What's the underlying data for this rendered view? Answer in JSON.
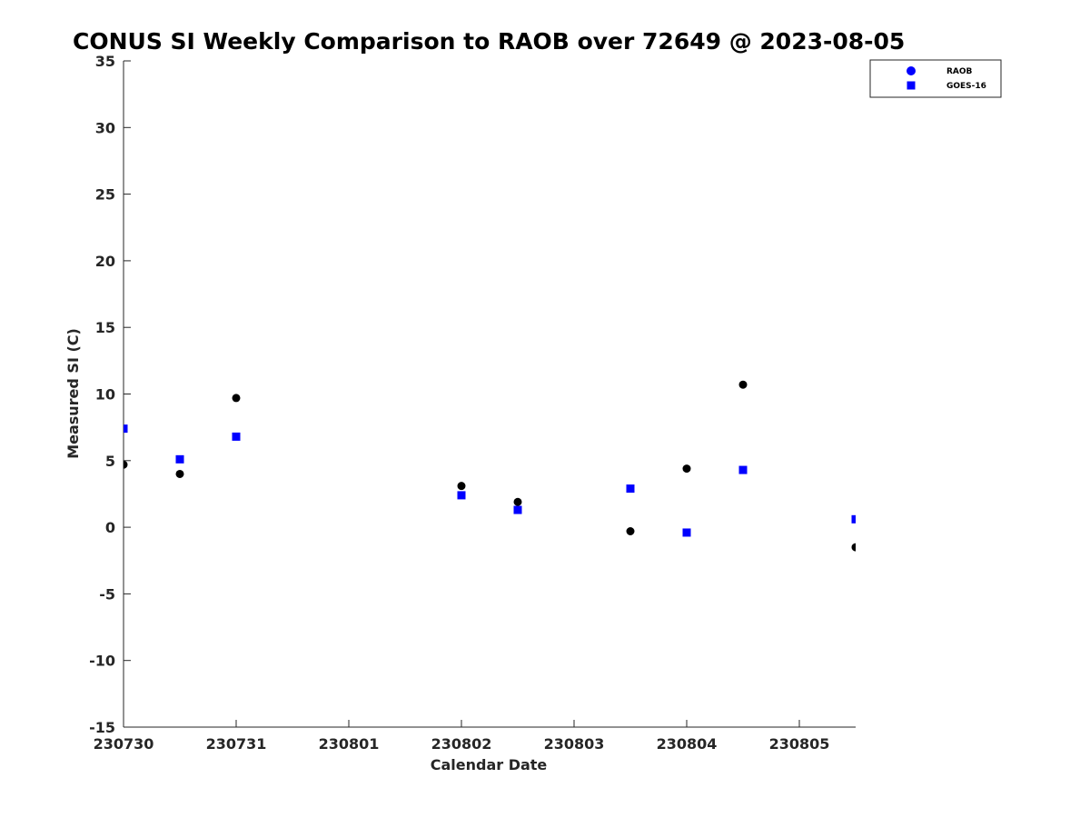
{
  "chart_data": {
    "type": "scatter",
    "title": "CONUS SI Weekly Comparison to RAOB over 72649 @ 2023-08-05",
    "xlabel": "Calendar Date",
    "ylabel": "Measured SI (C)",
    "x_ticks": [
      "230730",
      "230731",
      "230801",
      "230802",
      "230803",
      "230804",
      "230805"
    ],
    "x_range_days": [
      0,
      6.5
    ],
    "ylim": [
      -15,
      35
    ],
    "y_ticks": [
      -15,
      -10,
      -5,
      0,
      5,
      10,
      15,
      20,
      25,
      30,
      35
    ],
    "grid": false,
    "legend_position": "top-right",
    "series": [
      {
        "name": "RAOB",
        "marker": "circle",
        "color": "#000000",
        "legend_color": "#0000ff",
        "points": [
          {
            "x": "230730 00Z",
            "y": 4.7
          },
          {
            "x": "230730 12Z",
            "y": 4.0
          },
          {
            "x": "230731 00Z",
            "y": 9.7
          },
          {
            "x": "230802 00Z",
            "y": 3.1
          },
          {
            "x": "230802 12Z",
            "y": 1.9
          },
          {
            "x": "230803 12Z",
            "y": -0.3
          },
          {
            "x": "230804 00Z",
            "y": 4.4
          },
          {
            "x": "230804 12Z",
            "y": 10.7
          },
          {
            "x": "230805 12Z",
            "y": -1.5
          }
        ]
      },
      {
        "name": "GOES-16",
        "marker": "square",
        "color": "#0000ff",
        "legend_color": "#0000ff",
        "points": [
          {
            "x": "230730 00Z",
            "y": 7.4
          },
          {
            "x": "230730 12Z",
            "y": 5.1
          },
          {
            "x": "230731 00Z",
            "y": 6.8
          },
          {
            "x": "230802 00Z",
            "y": 2.4
          },
          {
            "x": "230802 12Z",
            "y": 1.3
          },
          {
            "x": "230803 12Z",
            "y": 2.9
          },
          {
            "x": "230804 00Z",
            "y": -0.4
          },
          {
            "x": "230804 12Z",
            "y": 4.3
          },
          {
            "x": "230805 12Z",
            "y": 0.6
          }
        ]
      }
    ]
  }
}
